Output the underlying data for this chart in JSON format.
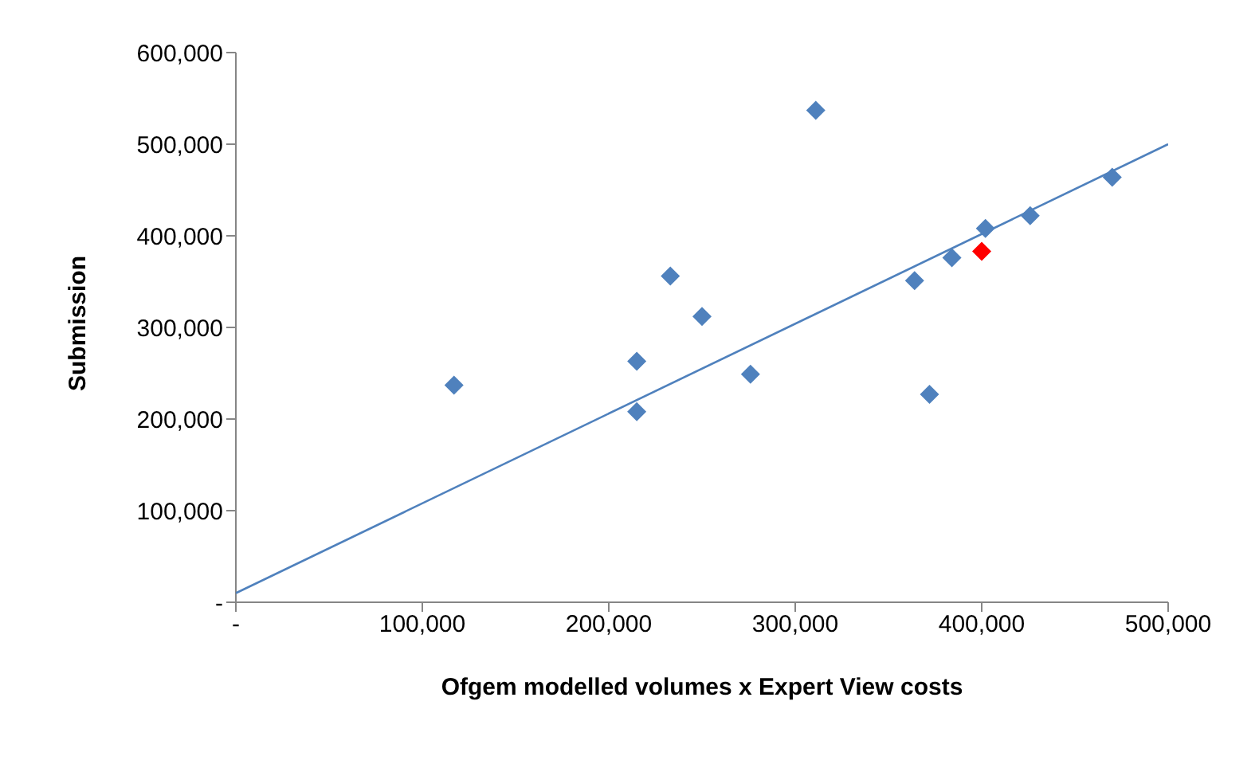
{
  "chart_data": {
    "type": "scatter",
    "xlabel": "Ofgem modelled volumes x Expert View costs",
    "ylabel": "Submission",
    "xlim": [
      0,
      500000
    ],
    "ylim": [
      0,
      600000
    ],
    "xticks": [
      {
        "value": 0,
        "label": "-"
      },
      {
        "value": 100000,
        "label": "100,000"
      },
      {
        "value": 200000,
        "label": "200,000"
      },
      {
        "value": 300000,
        "label": "300,000"
      },
      {
        "value": 400000,
        "label": "400,000"
      },
      {
        "value": 500000,
        "label": "500,000"
      }
    ],
    "yticks": [
      {
        "value": 0,
        "label": "-"
      },
      {
        "value": 100000,
        "label": "100,000"
      },
      {
        "value": 200000,
        "label": "200,000"
      },
      {
        "value": 300000,
        "label": "300,000"
      },
      {
        "value": 400000,
        "label": "400,000"
      },
      {
        "value": 500000,
        "label": "500,000"
      },
      {
        "value": 600000,
        "label": "600,000"
      }
    ],
    "marker": "diamond",
    "series": [
      {
        "color": "#4f81bd",
        "x": [
          117000,
          215000,
          215000,
          233000,
          250000,
          276000,
          311000,
          364000,
          372000,
          384000,
          402000,
          426000,
          470000
        ],
        "values": [
          237000,
          263000,
          208000,
          356000,
          312000,
          249000,
          537000,
          351000,
          227000,
          376000,
          408000,
          422000,
          464000
        ]
      },
      {
        "color": "#ff0000",
        "x": [
          400000
        ],
        "values": [
          383000
        ]
      },
      {
        "type": "line",
        "color": "#4f81bd",
        "marker": "none",
        "x": [
          0,
          500000
        ],
        "values": [
          10000,
          500000
        ]
      }
    ]
  }
}
